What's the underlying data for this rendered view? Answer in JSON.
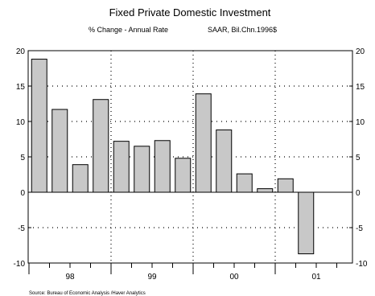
{
  "chart_data": {
    "type": "bar",
    "title": "Fixed Private Domestic Investment",
    "subtitle_left": "% Change - Annual Rate",
    "subtitle_right": "SAAR, Bil.Chn.1996$",
    "source": "Source:  Bureau of Economic Analysis /Haver Analytics",
    "ylim": [
      -10,
      20
    ],
    "yticks": [
      -10,
      -5,
      0,
      5,
      10,
      15,
      20
    ],
    "ytick_labels": [
      "-10",
      "-5",
      "0",
      "5",
      "10",
      "15",
      "20"
    ],
    "grid": "dotted-horizontal",
    "year_groups": [
      {
        "label": "98",
        "quarters": 4
      },
      {
        "label": "99",
        "quarters": 4
      },
      {
        "label": "00",
        "quarters": 4
      },
      {
        "label": "01",
        "quarters": 2
      }
    ],
    "quarters_per_group": 4,
    "values": [
      18.8,
      11.7,
      3.9,
      13.1,
      7.2,
      6.5,
      7.3,
      4.8,
      13.9,
      8.8,
      2.6,
      0.5,
      1.9,
      -8.7
    ],
    "bar_color": "#c8c8c8"
  }
}
